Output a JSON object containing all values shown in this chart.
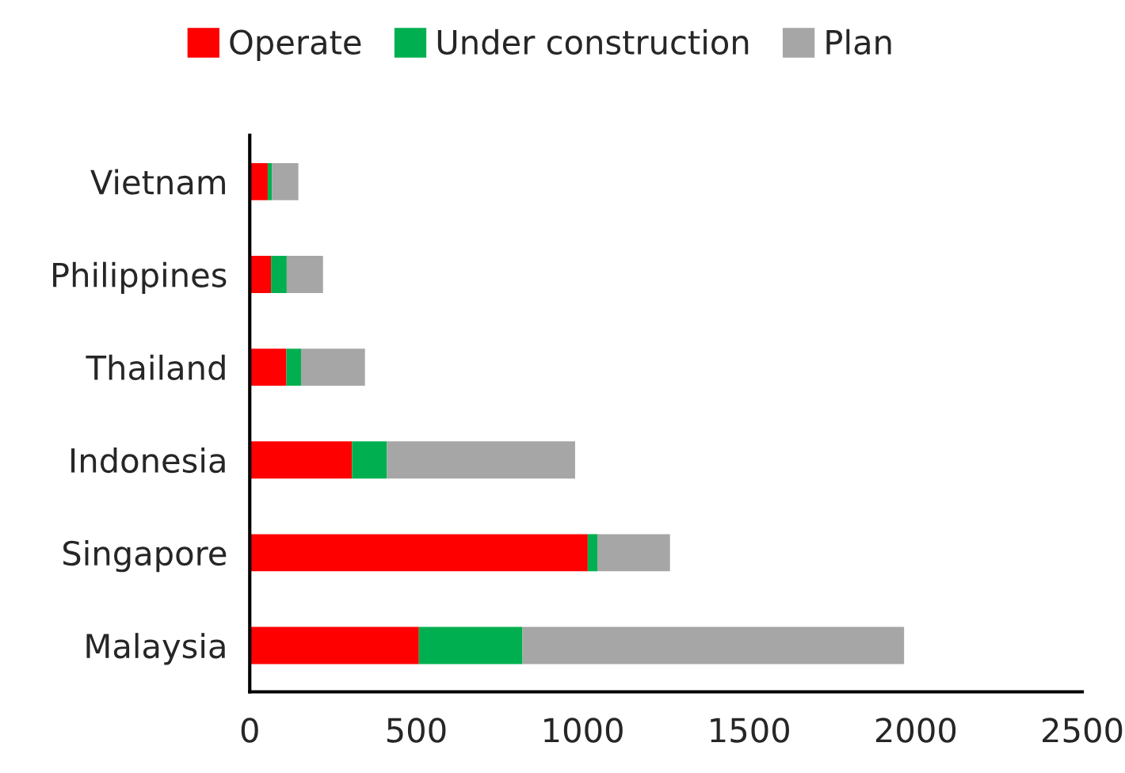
{
  "chart_data": {
    "type": "bar",
    "orientation": "horizontal",
    "stacked": true,
    "categories": [
      "Vietnam",
      "Philippines",
      "Thailand",
      "Indonesia",
      "Singapore",
      "Malaysia"
    ],
    "series": [
      {
        "name": "Operate",
        "color": "#ff0000",
        "values": [
          54,
          64,
          110,
          307,
          1015,
          508
        ]
      },
      {
        "name": "Under construction",
        "color": "#00b050",
        "values": [
          13,
          47,
          44,
          105,
          29,
          311
        ]
      },
      {
        "name": "Plan",
        "color": "#a6a6a6",
        "values": [
          79,
          109,
          192,
          565,
          218,
          1146
        ]
      }
    ],
    "xlim": [
      0,
      2500
    ],
    "xticks": [
      0,
      500,
      1000,
      1500,
      2000,
      2500
    ],
    "grid": false,
    "legend": "top"
  }
}
